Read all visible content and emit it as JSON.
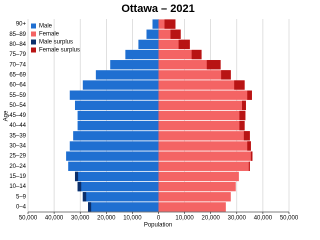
{
  "chart_data": {
    "type": "pyramid",
    "title": "Ottawa – 2021",
    "x_label": "Population",
    "y_label": "Age",
    "categories": [
      "0–4",
      "5–9",
      "10–14",
      "15–19",
      "20–24",
      "25–29",
      "30–34",
      "35–39",
      "40–44",
      "45–49",
      "50–54",
      "55–59",
      "60–64",
      "65–69",
      "70–74",
      "75–79",
      "80–84",
      "85–89",
      "90+"
    ],
    "series": [
      {
        "name": "Male",
        "color": "#1f6fd1",
        "values": [
          -27000,
          -29000,
          -31000,
          -32000,
          -34600,
          -35400,
          -34000,
          -32700,
          -31000,
          -31000,
          -32000,
          -34000,
          -29000,
          -24000,
          -18500,
          -12700,
          -7700,
          -4600,
          -2300
        ]
      },
      {
        "name": "Female",
        "color": "#f46464",
        "values": [
          25800,
          27700,
          29600,
          30800,
          35000,
          36000,
          35400,
          35000,
          33000,
          33300,
          33500,
          35800,
          33000,
          27700,
          23800,
          16500,
          12000,
          8500,
          6500
        ]
      }
    ],
    "surplus_series": [
      {
        "name": "Male surplus",
        "color": "#0b2f6b"
      },
      {
        "name": "Female surplus",
        "color": "#b81414"
      }
    ],
    "xlim": [
      -50000,
      50000
    ],
    "xticks": [
      {
        "value": -50000,
        "label": "50,000"
      },
      {
        "value": -40000,
        "label": "40,000"
      },
      {
        "value": -30000,
        "label": "30,000"
      },
      {
        "value": -20000,
        "label": "20,000"
      },
      {
        "value": -10000,
        "label": "10,000"
      },
      0,
      {
        "value": 10000,
        "label": "10,000"
      },
      {
        "value": 20000,
        "label": "20,000"
      },
      {
        "value": 30000,
        "label": "30,000"
      },
      {
        "value": 40000,
        "label": "40,000"
      },
      {
        "value": 50000,
        "label": "50,000"
      }
    ],
    "grid": true,
    "legend": "upper left"
  }
}
